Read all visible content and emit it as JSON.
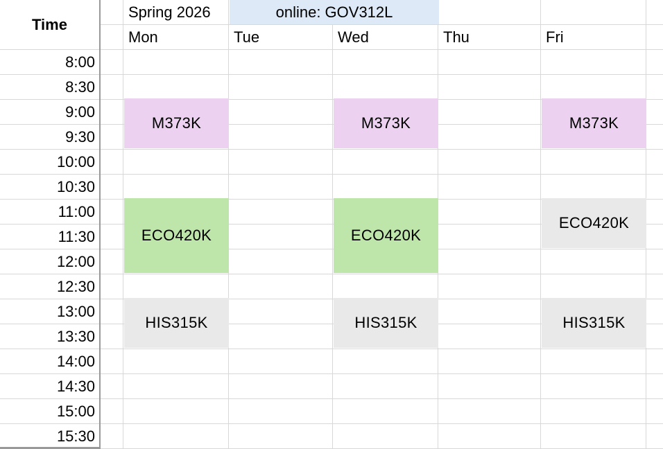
{
  "header": {
    "time_label": "Time",
    "term": "Spring 2026",
    "online": "online: GOV312L"
  },
  "days": [
    "Mon",
    "Tue",
    "Wed",
    "Thu",
    "Fri"
  ],
  "times": [
    "8:00",
    "8:30",
    "9:00",
    "9:30",
    "10:00",
    "10:30",
    "11:00",
    "11:30",
    "12:00",
    "12:30",
    "13:00",
    "13:30",
    "14:00",
    "14:30",
    "15:00",
    "15:30"
  ],
  "courses": [
    {
      "code": "M373K",
      "day": "Mon",
      "start": "9:00",
      "duration_slots": 2,
      "color": "#ecd2f0"
    },
    {
      "code": "M373K",
      "day": "Wed",
      "start": "9:00",
      "duration_slots": 2,
      "color": "#ecd2f0"
    },
    {
      "code": "M373K",
      "day": "Fri",
      "start": "9:00",
      "duration_slots": 2,
      "color": "#ecd2f0"
    },
    {
      "code": "ECO420K",
      "day": "Mon",
      "start": "11:00",
      "duration_slots": 3,
      "color": "#bee5aa"
    },
    {
      "code": "ECO420K",
      "day": "Wed",
      "start": "11:00",
      "duration_slots": 3,
      "color": "#bee5aa"
    },
    {
      "code": "ECO420K",
      "day": "Fri",
      "start": "11:00",
      "duration_slots": 2,
      "color": "#e9e9e9"
    },
    {
      "code": "HIS315K",
      "day": "Mon",
      "start": "13:00",
      "duration_slots": 2,
      "color": "#e9e9e9"
    },
    {
      "code": "HIS315K",
      "day": "Wed",
      "start": "13:00",
      "duration_slots": 2,
      "color": "#e9e9e9"
    },
    {
      "code": "HIS315K",
      "day": "Fri",
      "start": "13:00",
      "duration_slots": 2,
      "color": "#e9e9e9"
    }
  ],
  "colors": {
    "online_bg": "#dde9f7",
    "course_pink": "#ecd2f0",
    "course_green": "#bee5aa",
    "course_gray": "#e9e9e9",
    "grid_line": "#d8d8d8",
    "strong_line": "#999999"
  }
}
